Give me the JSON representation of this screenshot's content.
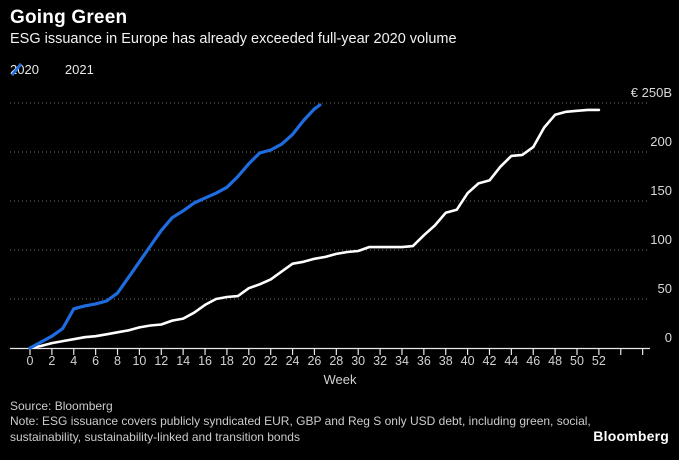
{
  "header": {
    "title": "Going Green",
    "subtitle": "ESG issuance in Europe has already exceeded full-year 2020 volume"
  },
  "legend": {
    "items": [
      {
        "label": "2020",
        "color": "#ffffff",
        "icon": "slash-mark-icon"
      },
      {
        "label": "2021",
        "color": "#1f6ce0",
        "icon": "slash-mark-icon"
      }
    ]
  },
  "chart_data": {
    "type": "line",
    "title": "Going Green",
    "subtitle": "ESG issuance in Europe has already exceeded full-year 2020 volume",
    "xlabel": "Week",
    "ylabel": "",
    "xlim": [
      0,
      52
    ],
    "ylim": [
      0,
      250
    ],
    "grid": "horizontal-dotted",
    "legend_position": "top-left",
    "y_ticks": [
      {
        "label": "0",
        "value": 0
      },
      {
        "label": "50",
        "value": 50
      },
      {
        "label": "100",
        "value": 100
      },
      {
        "label": "150",
        "value": 150
      },
      {
        "label": "200",
        "value": 200
      },
      {
        "label": "€ 250B",
        "value": 250
      }
    ],
    "x_tick_labels": [
      0,
      2,
      4,
      6,
      8,
      10,
      12,
      14,
      16,
      18,
      20,
      22,
      24,
      26,
      28,
      30,
      32,
      34,
      36,
      38,
      40,
      42,
      44,
      46,
      48,
      50,
      52
    ],
    "series": [
      {
        "name": "2020",
        "color": "#ffffff",
        "width": 2.6,
        "x": [
          0,
          1,
          2,
          3,
          4,
          5,
          6,
          7,
          8,
          9,
          10,
          11,
          12,
          13,
          14,
          15,
          16,
          17,
          18,
          19,
          20,
          21,
          22,
          23,
          24,
          25,
          26,
          27,
          28,
          29,
          30,
          31,
          32,
          33,
          34,
          35,
          36,
          37,
          38,
          39,
          40,
          41,
          42,
          43,
          44,
          45,
          46,
          47,
          48,
          49,
          50,
          51,
          52
        ],
        "values": [
          0,
          2,
          5,
          7,
          9,
          11,
          12,
          14,
          16,
          18,
          21,
          23,
          24,
          28,
          30,
          36,
          44,
          50,
          52,
          53,
          61,
          65,
          70,
          78,
          86,
          88,
          91,
          93,
          96,
          98,
          99,
          103,
          103,
          103,
          103,
          104,
          115,
          125,
          138,
          141,
          158,
          168,
          171,
          185,
          196,
          197,
          205,
          225,
          238,
          241,
          242,
          243,
          243
        ]
      },
      {
        "name": "2021",
        "color": "#1f6ce0",
        "width": 3.2,
        "x": [
          0,
          1,
          2,
          3,
          4,
          5,
          6,
          7,
          8,
          9,
          10,
          11,
          12,
          13,
          14,
          15,
          16,
          17,
          18,
          19,
          20,
          21,
          22,
          23,
          24,
          25,
          26,
          26.5
        ],
        "values": [
          0,
          6,
          12,
          20,
          40,
          43,
          45,
          48,
          56,
          72,
          88,
          104,
          120,
          133,
          140,
          148,
          153,
          158,
          164,
          175,
          188,
          199,
          202,
          208,
          218,
          232,
          244,
          248
        ]
      }
    ]
  },
  "footer": {
    "source": "Source: Bloomberg",
    "note": "Note: ESG issuance covers publicly syndicated EUR, GBP and Reg S only USD debt, including green, social, sustainability, sustainability-linked and transition bonds",
    "logo": "Bloomberg"
  }
}
